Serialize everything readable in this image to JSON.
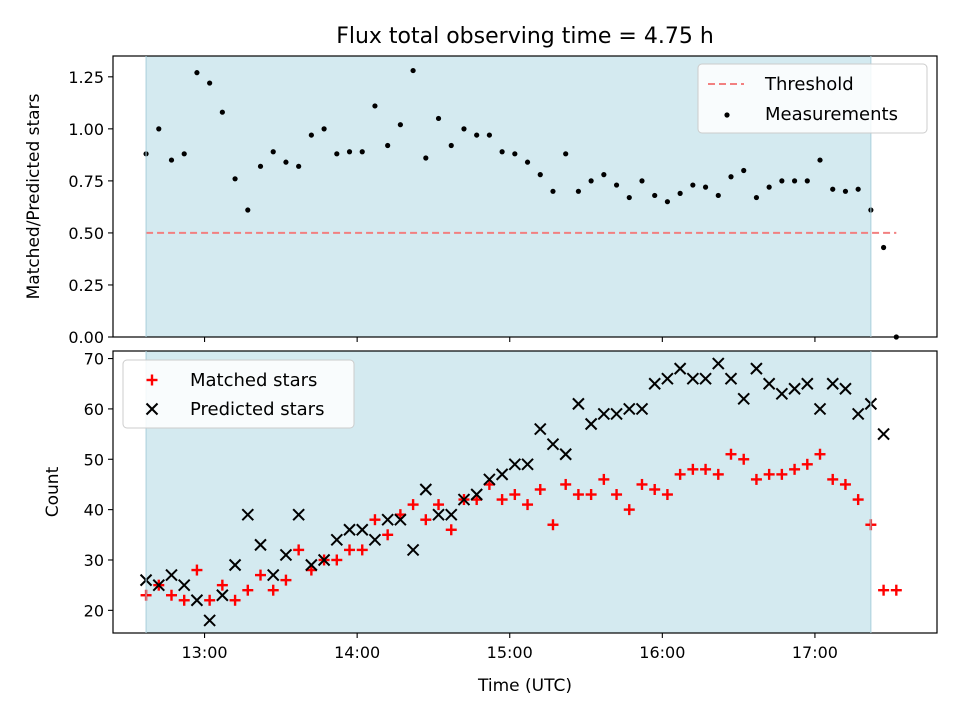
{
  "title": "Flux total observing time = 4.75 h",
  "xlabel": "Time (UTC)",
  "x_ticks": [
    "13:00",
    "14:00",
    "15:00",
    "16:00",
    "17:00"
  ],
  "colors": {
    "observing_band": "#d4eaf0",
    "threshold": "#f28080",
    "matched": "#ff0000",
    "predicted": "#000000",
    "measurements": "#000000"
  },
  "chart_data": [
    {
      "type": "scatter",
      "name": "ratio-panel",
      "ylabel": "Matched/Predicted stars",
      "ylim": [
        0,
        1.35
      ],
      "y_ticks": [
        "0.00",
        "0.25",
        "0.50",
        "0.75",
        "1.00",
        "1.25"
      ],
      "xlim": [
        "12:24",
        "17:48"
      ],
      "observing_window": [
        "12:37",
        "17:22"
      ],
      "threshold": {
        "label": "Threshold",
        "value": 0.5,
        "x_range": [
          "12:37",
          "17:32"
        ],
        "style": "dashed"
      },
      "legend": {
        "placement": "top-right",
        "entries": [
          "Threshold",
          "Measurements"
        ]
      },
      "series": [
        {
          "name": "Measurements",
          "marker": "dot",
          "points": [
            [
              "12:37",
              0.88
            ],
            [
              "12:42",
              1.0
            ],
            [
              "12:47",
              0.85
            ],
            [
              "12:52",
              0.88
            ],
            [
              "12:57",
              1.27
            ],
            [
              "13:02",
              1.22
            ],
            [
              "13:07",
              1.08
            ],
            [
              "13:12",
              0.76
            ],
            [
              "13:17",
              0.61
            ],
            [
              "13:22",
              0.82
            ],
            [
              "13:27",
              0.89
            ],
            [
              "13:32",
              0.84
            ],
            [
              "13:37",
              0.82
            ],
            [
              "13:42",
              0.97
            ],
            [
              "13:47",
              1.0
            ],
            [
              "13:52",
              0.88
            ],
            [
              "13:57",
              0.89
            ],
            [
              "14:02",
              0.89
            ],
            [
              "14:07",
              1.11
            ],
            [
              "14:12",
              0.92
            ],
            [
              "14:17",
              1.02
            ],
            [
              "14:22",
              1.28
            ],
            [
              "14:27",
              0.86
            ],
            [
              "14:32",
              1.05
            ],
            [
              "14:37",
              0.92
            ],
            [
              "14:42",
              1.0
            ],
            [
              "14:47",
              0.97
            ],
            [
              "14:52",
              0.97
            ],
            [
              "14:57",
              0.89
            ],
            [
              "15:02",
              0.88
            ],
            [
              "15:07",
              0.84
            ],
            [
              "15:12",
              0.78
            ],
            [
              "15:17",
              0.7
            ],
            [
              "15:22",
              0.88
            ],
            [
              "15:27",
              0.7
            ],
            [
              "15:32",
              0.75
            ],
            [
              "15:37",
              0.78
            ],
            [
              "15:42",
              0.73
            ],
            [
              "15:47",
              0.67
            ],
            [
              "15:52",
              0.75
            ],
            [
              "15:57",
              0.68
            ],
            [
              "16:02",
              0.65
            ],
            [
              "16:07",
              0.69
            ],
            [
              "16:12",
              0.73
            ],
            [
              "16:17",
              0.72
            ],
            [
              "16:22",
              0.68
            ],
            [
              "16:27",
              0.77
            ],
            [
              "16:32",
              0.8
            ],
            [
              "16:37",
              0.67
            ],
            [
              "16:42",
              0.72
            ],
            [
              "16:47",
              0.75
            ],
            [
              "16:52",
              0.75
            ],
            [
              "16:57",
              0.75
            ],
            [
              "17:02",
              0.85
            ],
            [
              "17:07",
              0.71
            ],
            [
              "17:12",
              0.7
            ],
            [
              "17:17",
              0.71
            ],
            [
              "17:22",
              0.61
            ],
            [
              "17:27",
              0.43
            ],
            [
              "17:32",
              0.0
            ]
          ]
        }
      ]
    },
    {
      "type": "scatter",
      "name": "count-panel",
      "ylabel": "Count",
      "ylim": [
        15.5,
        71.5
      ],
      "y_ticks": [
        "20",
        "30",
        "40",
        "50",
        "60",
        "70"
      ],
      "xlim": [
        "12:24",
        "17:48"
      ],
      "observing_window": [
        "12:37",
        "17:22"
      ],
      "legend": {
        "placement": "top-left",
        "entries": [
          "Matched stars",
          "Predicted stars"
        ]
      },
      "series": [
        {
          "name": "Matched stars",
          "marker": "plus",
          "points": [
            [
              "12:37",
              23
            ],
            [
              "12:42",
              25
            ],
            [
              "12:47",
              23
            ],
            [
              "12:52",
              22
            ],
            [
              "12:57",
              28
            ],
            [
              "13:02",
              22
            ],
            [
              "13:07",
              25
            ],
            [
              "13:12",
              22
            ],
            [
              "13:17",
              24
            ],
            [
              "13:22",
              27
            ],
            [
              "13:27",
              24
            ],
            [
              "13:32",
              26
            ],
            [
              "13:37",
              32
            ],
            [
              "13:42",
              28
            ],
            [
              "13:47",
              30
            ],
            [
              "13:52",
              30
            ],
            [
              "13:57",
              32
            ],
            [
              "14:02",
              32
            ],
            [
              "14:07",
              38
            ],
            [
              "14:12",
              35
            ],
            [
              "14:17",
              39
            ],
            [
              "14:22",
              41
            ],
            [
              "14:27",
              38
            ],
            [
              "14:32",
              41
            ],
            [
              "14:37",
              36
            ],
            [
              "14:42",
              42
            ],
            [
              "14:47",
              42
            ],
            [
              "14:52",
              45
            ],
            [
              "14:57",
              42
            ],
            [
              "15:02",
              43
            ],
            [
              "15:07",
              41
            ],
            [
              "15:12",
              44
            ],
            [
              "15:17",
              37
            ],
            [
              "15:22",
              45
            ],
            [
              "15:27",
              43
            ],
            [
              "15:32",
              43
            ],
            [
              "15:37",
              46
            ],
            [
              "15:42",
              43
            ],
            [
              "15:47",
              40
            ],
            [
              "15:52",
              45
            ],
            [
              "15:57",
              44
            ],
            [
              "16:02",
              43
            ],
            [
              "16:07",
              47
            ],
            [
              "16:12",
              48
            ],
            [
              "16:17",
              48
            ],
            [
              "16:22",
              47
            ],
            [
              "16:27",
              51
            ],
            [
              "16:32",
              50
            ],
            [
              "16:37",
              46
            ],
            [
              "16:42",
              47
            ],
            [
              "16:47",
              47
            ],
            [
              "16:52",
              48
            ],
            [
              "16:57",
              49
            ],
            [
              "17:02",
              51
            ],
            [
              "17:07",
              46
            ],
            [
              "17:12",
              45
            ],
            [
              "17:17",
              42
            ],
            [
              "17:22",
              37
            ],
            [
              "17:27",
              24
            ],
            [
              "17:32",
              24
            ]
          ]
        },
        {
          "name": "Predicted stars",
          "marker": "x",
          "points": [
            [
              "12:37",
              26
            ],
            [
              "12:42",
              25
            ],
            [
              "12:47",
              27
            ],
            [
              "12:52",
              25
            ],
            [
              "12:57",
              22
            ],
            [
              "13:02",
              18
            ],
            [
              "13:07",
              23
            ],
            [
              "13:12",
              29
            ],
            [
              "13:17",
              39
            ],
            [
              "13:22",
              33
            ],
            [
              "13:27",
              27
            ],
            [
              "13:32",
              31
            ],
            [
              "13:37",
              39
            ],
            [
              "13:42",
              29
            ],
            [
              "13:47",
              30
            ],
            [
              "13:52",
              34
            ],
            [
              "13:57",
              36
            ],
            [
              "14:02",
              36
            ],
            [
              "14:07",
              34
            ],
            [
              "14:12",
              38
            ],
            [
              "14:17",
              38
            ],
            [
              "14:22",
              32
            ],
            [
              "14:27",
              44
            ],
            [
              "14:32",
              39
            ],
            [
              "14:37",
              39
            ],
            [
              "14:42",
              42
            ],
            [
              "14:47",
              43
            ],
            [
              "14:52",
              46
            ],
            [
              "14:57",
              47
            ],
            [
              "15:02",
              49
            ],
            [
              "15:07",
              49
            ],
            [
              "15:12",
              56
            ],
            [
              "15:17",
              53
            ],
            [
              "15:22",
              51
            ],
            [
              "15:27",
              61
            ],
            [
              "15:32",
              57
            ],
            [
              "15:37",
              59
            ],
            [
              "15:42",
              59
            ],
            [
              "15:47",
              60
            ],
            [
              "15:52",
              60
            ],
            [
              "15:57",
              65
            ],
            [
              "16:02",
              66
            ],
            [
              "16:07",
              68
            ],
            [
              "16:12",
              66
            ],
            [
              "16:17",
              66
            ],
            [
              "16:22",
              69
            ],
            [
              "16:27",
              66
            ],
            [
              "16:32",
              62
            ],
            [
              "16:37",
              68
            ],
            [
              "16:42",
              65
            ],
            [
              "16:47",
              63
            ],
            [
              "16:52",
              64
            ],
            [
              "16:57",
              65
            ],
            [
              "17:02",
              60
            ],
            [
              "17:07",
              65
            ],
            [
              "17:12",
              64
            ],
            [
              "17:17",
              59
            ],
            [
              "17:22",
              61
            ],
            [
              "17:27",
              55
            ]
          ]
        }
      ]
    }
  ]
}
